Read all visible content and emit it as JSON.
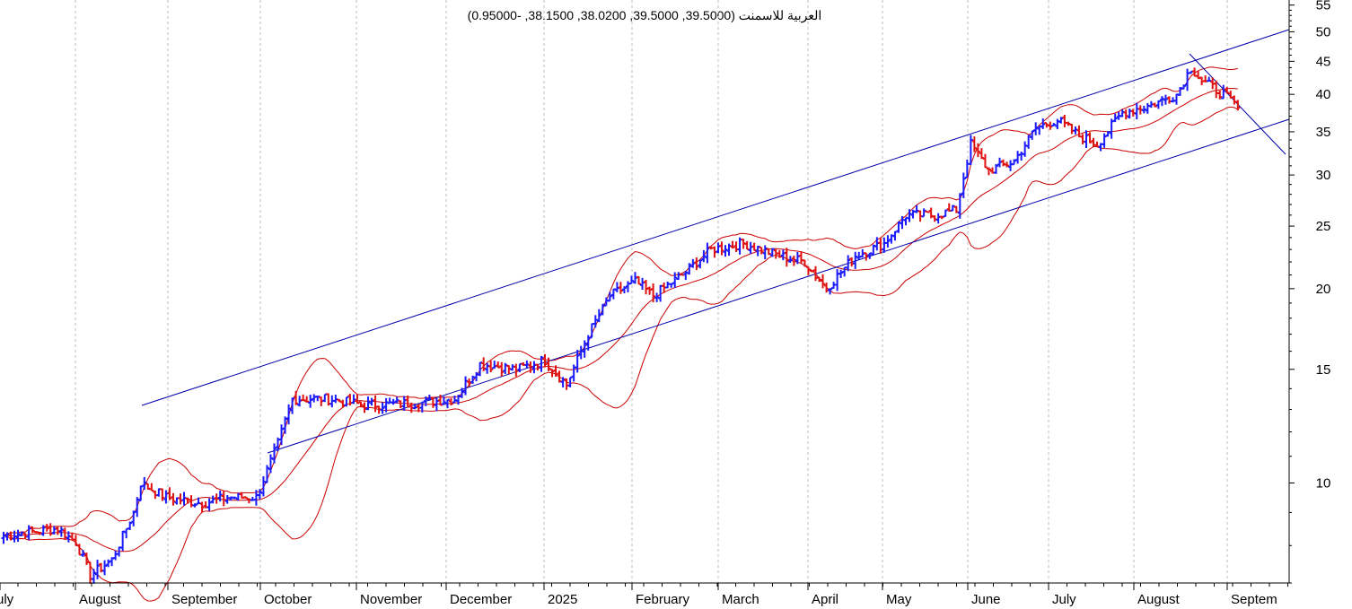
{
  "chart_data": {
    "type": "ohlc-bar",
    "title": "العربية للاسمنت (39.5000, 39.5000, 38.0200, 38.1500, -0.95000)",
    "y_scale": "log",
    "ylim": [
      7,
      56
    ],
    "y_ticks": [
      {
        "value": 55,
        "label": "55"
      },
      {
        "value": 50,
        "label": "50"
      },
      {
        "value": 45,
        "label": "45"
      },
      {
        "value": 40,
        "label": "40"
      },
      {
        "value": 35,
        "label": "35"
      },
      {
        "value": 30,
        "label": "30"
      },
      {
        "value": 25,
        "label": "25"
      },
      {
        "value": 20,
        "label": "20"
      },
      {
        "value": 15,
        "label": "15"
      },
      {
        "value": 10,
        "label": "10"
      }
    ],
    "x_ticks": [
      "uly",
      "August",
      "September",
      "October",
      "November",
      "December",
      "2025",
      "February",
      "March",
      "April",
      "May",
      "June",
      "July",
      "August",
      "Septem"
    ],
    "grid": "vertical dotted at month starts",
    "colors": {
      "up": "#1a1aff",
      "down": "#e01010",
      "band": "#cc0000",
      "channel": "#0000aa"
    },
    "close_anchors": [
      {
        "t": 0,
        "v": 8.3
      },
      {
        "t": 15,
        "v": 8.5
      },
      {
        "t": 20,
        "v": 8.1
      },
      {
        "t": 24,
        "v": 7.2
      },
      {
        "t": 30,
        "v": 7.6
      },
      {
        "t": 36,
        "v": 9.0
      },
      {
        "t": 38,
        "v": 10.0
      },
      {
        "t": 45,
        "v": 9.5
      },
      {
        "t": 55,
        "v": 9.3
      },
      {
        "t": 62,
        "v": 9.5
      },
      {
        "t": 70,
        "v": 9.5
      },
      {
        "t": 76,
        "v": 11.5
      },
      {
        "t": 80,
        "v": 13.5
      },
      {
        "t": 90,
        "v": 13.5
      },
      {
        "t": 100,
        "v": 13.2
      },
      {
        "t": 115,
        "v": 13.3
      },
      {
        "t": 125,
        "v": 13.5
      },
      {
        "t": 132,
        "v": 15.3
      },
      {
        "t": 142,
        "v": 15.0
      },
      {
        "t": 150,
        "v": 15.5
      },
      {
        "t": 156,
        "v": 14.2
      },
      {
        "t": 162,
        "v": 17.0
      },
      {
        "t": 168,
        "v": 19.5
      },
      {
        "t": 175,
        "v": 20.5
      },
      {
        "t": 180,
        "v": 19.5
      },
      {
        "t": 188,
        "v": 21.0
      },
      {
        "t": 196,
        "v": 23.0
      },
      {
        "t": 205,
        "v": 23.5
      },
      {
        "t": 215,
        "v": 22.5
      },
      {
        "t": 222,
        "v": 22.0
      },
      {
        "t": 228,
        "v": 20.0
      },
      {
        "t": 236,
        "v": 22.5
      },
      {
        "t": 244,
        "v": 23.5
      },
      {
        "t": 250,
        "v": 26.0
      },
      {
        "t": 258,
        "v": 26.0
      },
      {
        "t": 264,
        "v": 26.5
      },
      {
        "t": 268,
        "v": 33.5
      },
      {
        "t": 273,
        "v": 30.5
      },
      {
        "t": 280,
        "v": 31.5
      },
      {
        "t": 286,
        "v": 35.5
      },
      {
        "t": 292,
        "v": 36.5
      },
      {
        "t": 298,
        "v": 34.5
      },
      {
        "t": 303,
        "v": 33.5
      },
      {
        "t": 310,
        "v": 37.5
      },
      {
        "t": 318,
        "v": 38.5
      },
      {
        "t": 325,
        "v": 40.0
      },
      {
        "t": 329,
        "v": 44.0
      },
      {
        "t": 332,
        "v": 42.0
      },
      {
        "t": 338,
        "v": 40.0
      },
      {
        "t": 342,
        "v": 38.15
      }
    ]
  }
}
